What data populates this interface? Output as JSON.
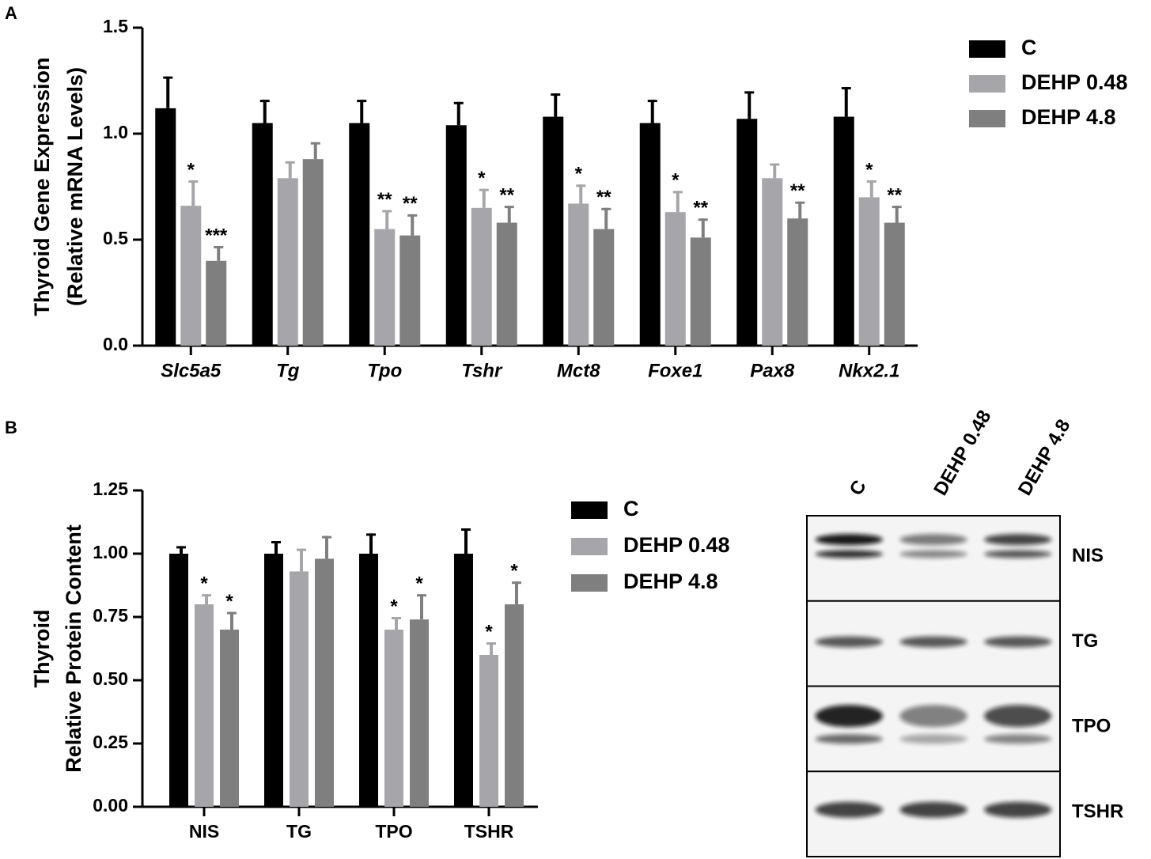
{
  "chart_data": [
    {
      "type": "bar",
      "title": "A",
      "ylabel": [
        "Thyroid Gene Expression",
        "(Relative mRNA Levels)"
      ],
      "categories": [
        "Slc5a5",
        "Tg",
        "Tpo",
        "Tshr",
        "Mct8",
        "Foxe1",
        "Pax8",
        "Nkx2.1"
      ],
      "italic_categories": true,
      "ylim": [
        0,
        1.5
      ],
      "yticks": [
        {
          "value": 0,
          "label": "0.0"
        },
        0.5,
        {
          "value": 1,
          "label": "1.0"
        },
        1.5
      ],
      "series": [
        {
          "name": "C",
          "color": "#000000",
          "values": [
            1.12,
            1.05,
            1.05,
            1.04,
            1.08,
            1.05,
            1.07,
            1.08
          ],
          "errors": [
            0.15,
            0.11,
            0.11,
            0.11,
            0.11,
            0.11,
            0.13,
            0.14
          ]
        },
        {
          "name": "DEHP 0.48",
          "color": "#a6a6aa",
          "values": [
            0.66,
            0.79,
            0.55,
            0.65,
            0.67,
            0.63,
            0.79,
            0.7
          ],
          "errors": [
            0.12,
            0.08,
            0.09,
            0.09,
            0.09,
            0.1,
            0.07,
            0.08
          ],
          "annotations": [
            "*",
            null,
            "**",
            "*",
            "*",
            "*",
            null,
            "*"
          ]
        },
        {
          "name": "DEHP 4.8",
          "color": "#7f7f7f",
          "values": [
            0.4,
            0.88,
            0.52,
            0.58,
            0.55,
            0.51,
            0.6,
            0.58
          ],
          "errors": [
            0.07,
            0.08,
            0.1,
            0.08,
            0.1,
            0.09,
            0.08,
            0.08
          ],
          "annotations": [
            "***",
            null,
            "**",
            "**",
            "**",
            "**",
            "**",
            "**"
          ]
        }
      ]
    },
    {
      "type": "bar",
      "title": "B",
      "ylabel": [
        "Thyroid",
        "Relative Protein Content"
      ],
      "categories": [
        "NIS",
        "TG",
        "TPO",
        "TSHR"
      ],
      "italic_categories": false,
      "ylim": [
        0,
        1.25
      ],
      "yticks": [
        {
          "value": 0,
          "label": "0.00"
        },
        0.25,
        {
          "value": 0.5,
          "label": "0.50"
        },
        0.75,
        {
          "value": 1,
          "label": "1.00"
        },
        1.25
      ],
      "series": [
        {
          "name": "C",
          "color": "#000000",
          "values": [
            1,
            1,
            1,
            1
          ],
          "errors": [
            0.03,
            0.05,
            0.08,
            0.1
          ]
        },
        {
          "name": "DEHP 0.48",
          "color": "#a6a6aa",
          "values": [
            0.8,
            0.93,
            0.7,
            0.6
          ],
          "errors": [
            0.04,
            0.09,
            0.05,
            0.05
          ],
          "annotations": [
            "*",
            null,
            "*",
            "*"
          ]
        },
        {
          "name": "DEHP 4.8",
          "color": "#7f7f7f",
          "values": [
            0.7,
            0.98,
            0.74,
            0.8
          ],
          "errors": [
            0.07,
            0.09,
            0.1,
            0.09
          ],
          "annotations": [
            "*",
            null,
            "*",
            "*"
          ]
        }
      ]
    }
  ],
  "blot": {
    "lanes": [
      "C",
      "DEHP 0.48",
      "DEHP 4.8"
    ],
    "rows": [
      "NIS",
      "TG",
      "TPO",
      "TSHR"
    ]
  }
}
